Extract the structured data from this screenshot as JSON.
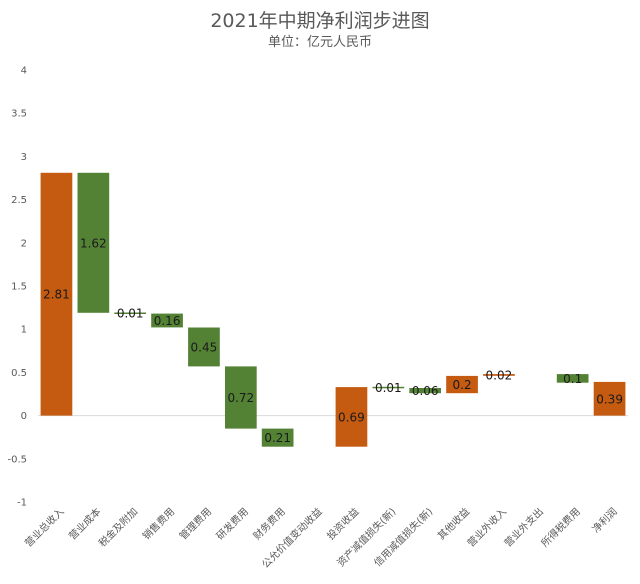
{
  "chart_data": {
    "type": "bar",
    "subtype": "waterfall",
    "title": "2021年中期净利润步进图",
    "subtitle": "单位：亿元人民币",
    "ylim": [
      -1,
      4
    ],
    "yticks": [
      "4",
      "3.5",
      "3",
      "2.5",
      "2",
      "1.5",
      "1",
      "0.5",
      "0",
      "-0.5",
      "-1"
    ],
    "grid": false,
    "categories": [
      "营业总收入",
      "营业成本",
      "税金及附加",
      "销售费用",
      "管理费用",
      "研发费用",
      "财务费用",
      "公允价值变动收益",
      "投资收益",
      "资产减值损失(新)",
      "信用减值损失(新)",
      "其他收益",
      "营业外收入",
      "营业外支出",
      "所得税费用",
      "净利润"
    ],
    "bars": [
      {
        "label": "2.81",
        "low": 0,
        "high": 2.81,
        "kind": "increase"
      },
      {
        "label": "1.62",
        "low": 1.19,
        "high": 2.81,
        "kind": "decrease"
      },
      {
        "label": "0.01",
        "low": 1.18,
        "high": 1.19,
        "kind": "decrease"
      },
      {
        "label": "0.16",
        "low": 1.02,
        "high": 1.18,
        "kind": "decrease"
      },
      {
        "label": "0.45",
        "low": 0.57,
        "high": 1.02,
        "kind": "decrease"
      },
      {
        "label": "0.72",
        "low": -0.15,
        "high": 0.57,
        "kind": "decrease"
      },
      {
        "label": "0.21",
        "low": -0.36,
        "high": -0.15,
        "kind": "decrease"
      },
      {
        "label": "",
        "low": -0.36,
        "high": -0.36,
        "kind": "none"
      },
      {
        "label": "0.69",
        "low": -0.36,
        "high": 0.33,
        "kind": "increase"
      },
      {
        "label": "0.01",
        "low": 0.32,
        "high": 0.33,
        "kind": "decrease"
      },
      {
        "label": "0.06",
        "low": 0.26,
        "high": 0.32,
        "kind": "decrease"
      },
      {
        "label": "0.2",
        "low": 0.26,
        "high": 0.46,
        "kind": "increase"
      },
      {
        "label": "0.02",
        "low": 0.46,
        "high": 0.48,
        "kind": "increase"
      },
      {
        "label": "",
        "low": 0.48,
        "high": 0.48,
        "kind": "none"
      },
      {
        "label": "0.1",
        "low": 0.38,
        "high": 0.48,
        "kind": "decrease"
      },
      {
        "label": "0.39",
        "low": 0,
        "high": 0.39,
        "kind": "total"
      }
    ],
    "colors": {
      "increase": "#c55a11",
      "total": "#c55a11",
      "decrease": "#548235",
      "axis": "#d9d9d9"
    }
  }
}
